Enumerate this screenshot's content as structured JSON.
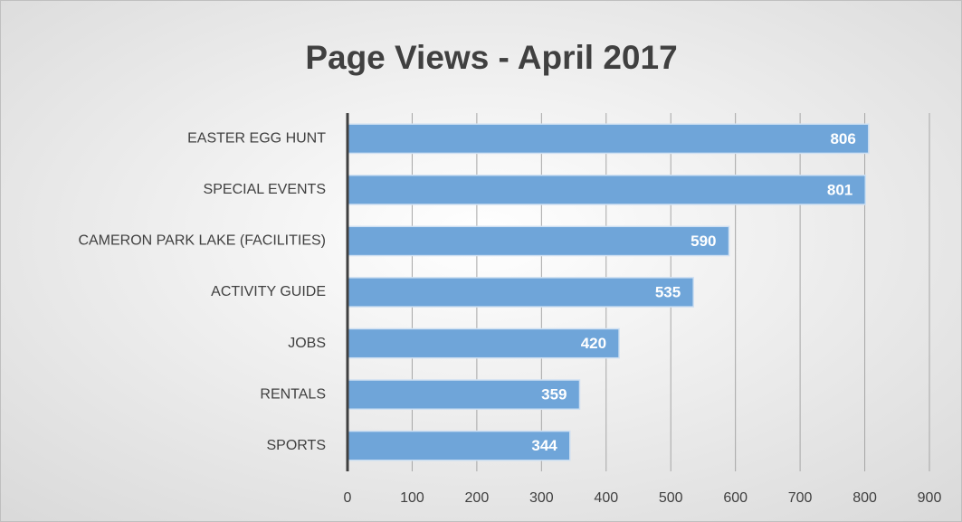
{
  "chart_data": {
    "type": "barh",
    "title": "Page Views - April 2017",
    "categories": [
      "EASTER EGG HUNT",
      "SPECIAL EVENTS",
      "CAMERON PARK LAKE (FACILITIES)",
      "ACTIVITY GUIDE",
      "JOBS",
      "RENTALS",
      "SPORTS"
    ],
    "values": [
      806,
      801,
      590,
      535,
      420,
      359,
      344
    ],
    "color": "#6fa5d9",
    "xlim": [
      0,
      900
    ],
    "xticks": [
      0,
      100,
      200,
      300,
      400,
      500,
      600,
      700,
      800,
      900
    ],
    "grid": true
  }
}
